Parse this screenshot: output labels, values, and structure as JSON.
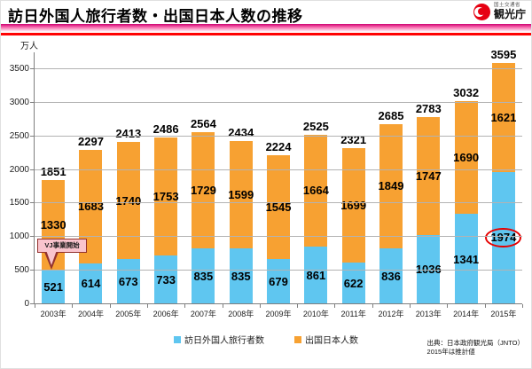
{
  "header": {
    "title": "訪日外国人旅行者数・出国日本人数の推移",
    "logo": {
      "ministry": "国土交通省",
      "agency": "観光庁"
    }
  },
  "chart_data": {
    "type": "bar",
    "stacked": true,
    "title": "訪日外国人旅行者数・出国日本人数の推移",
    "unit_label": "万人",
    "categories": [
      "2003年",
      "2004年",
      "2005年",
      "2006年",
      "2007年",
      "2008年",
      "2009年",
      "2010年",
      "2011年",
      "2012年",
      "2013年",
      "2014年",
      "2015年"
    ],
    "series": [
      {
        "name": "訪日外国人旅行者数",
        "color": "#5FC6F0",
        "values": [
          521,
          614,
          673,
          733,
          835,
          835,
          679,
          861,
          622,
          836,
          1036,
          1341,
          1974
        ]
      },
      {
        "name": "出国日本人数",
        "color": "#F7A132",
        "values": [
          1330,
          1683,
          1740,
          1753,
          1729,
          1599,
          1545,
          1664,
          1699,
          1849,
          1747,
          1690,
          1621
        ]
      }
    ],
    "totals": [
      1851,
      2297,
      2413,
      2486,
      2564,
      2434,
      2224,
      2525,
      2321,
      2685,
      2783,
      3032,
      3595
    ],
    "ylim": [
      0,
      3500
    ],
    "yticks": [
      0,
      500,
      1000,
      1500,
      2000,
      2500,
      3000,
      3500
    ],
    "grid": true,
    "legend_position": "bottom",
    "annotations": {
      "callout": {
        "text": "VJ事業開始",
        "year": "2003年"
      },
      "highlight_circle": {
        "year": "2015年",
        "series": "訪日外国人旅行者数",
        "value": 1974,
        "color": "#E60000"
      }
    }
  },
  "footer": {
    "source_line1": "出典：日本政府観光局（JNTO）",
    "source_line2": "2015年は推計値"
  },
  "colors": {
    "visitors_bar": "#5FC6F0",
    "departures_bar": "#F7A132",
    "band_magenta": "#CF0070",
    "band_red": "#FF0202",
    "highlight_circle": "#E60000",
    "callout_bg": "#F9C4CD",
    "gridline": "#B3B3B3"
  }
}
